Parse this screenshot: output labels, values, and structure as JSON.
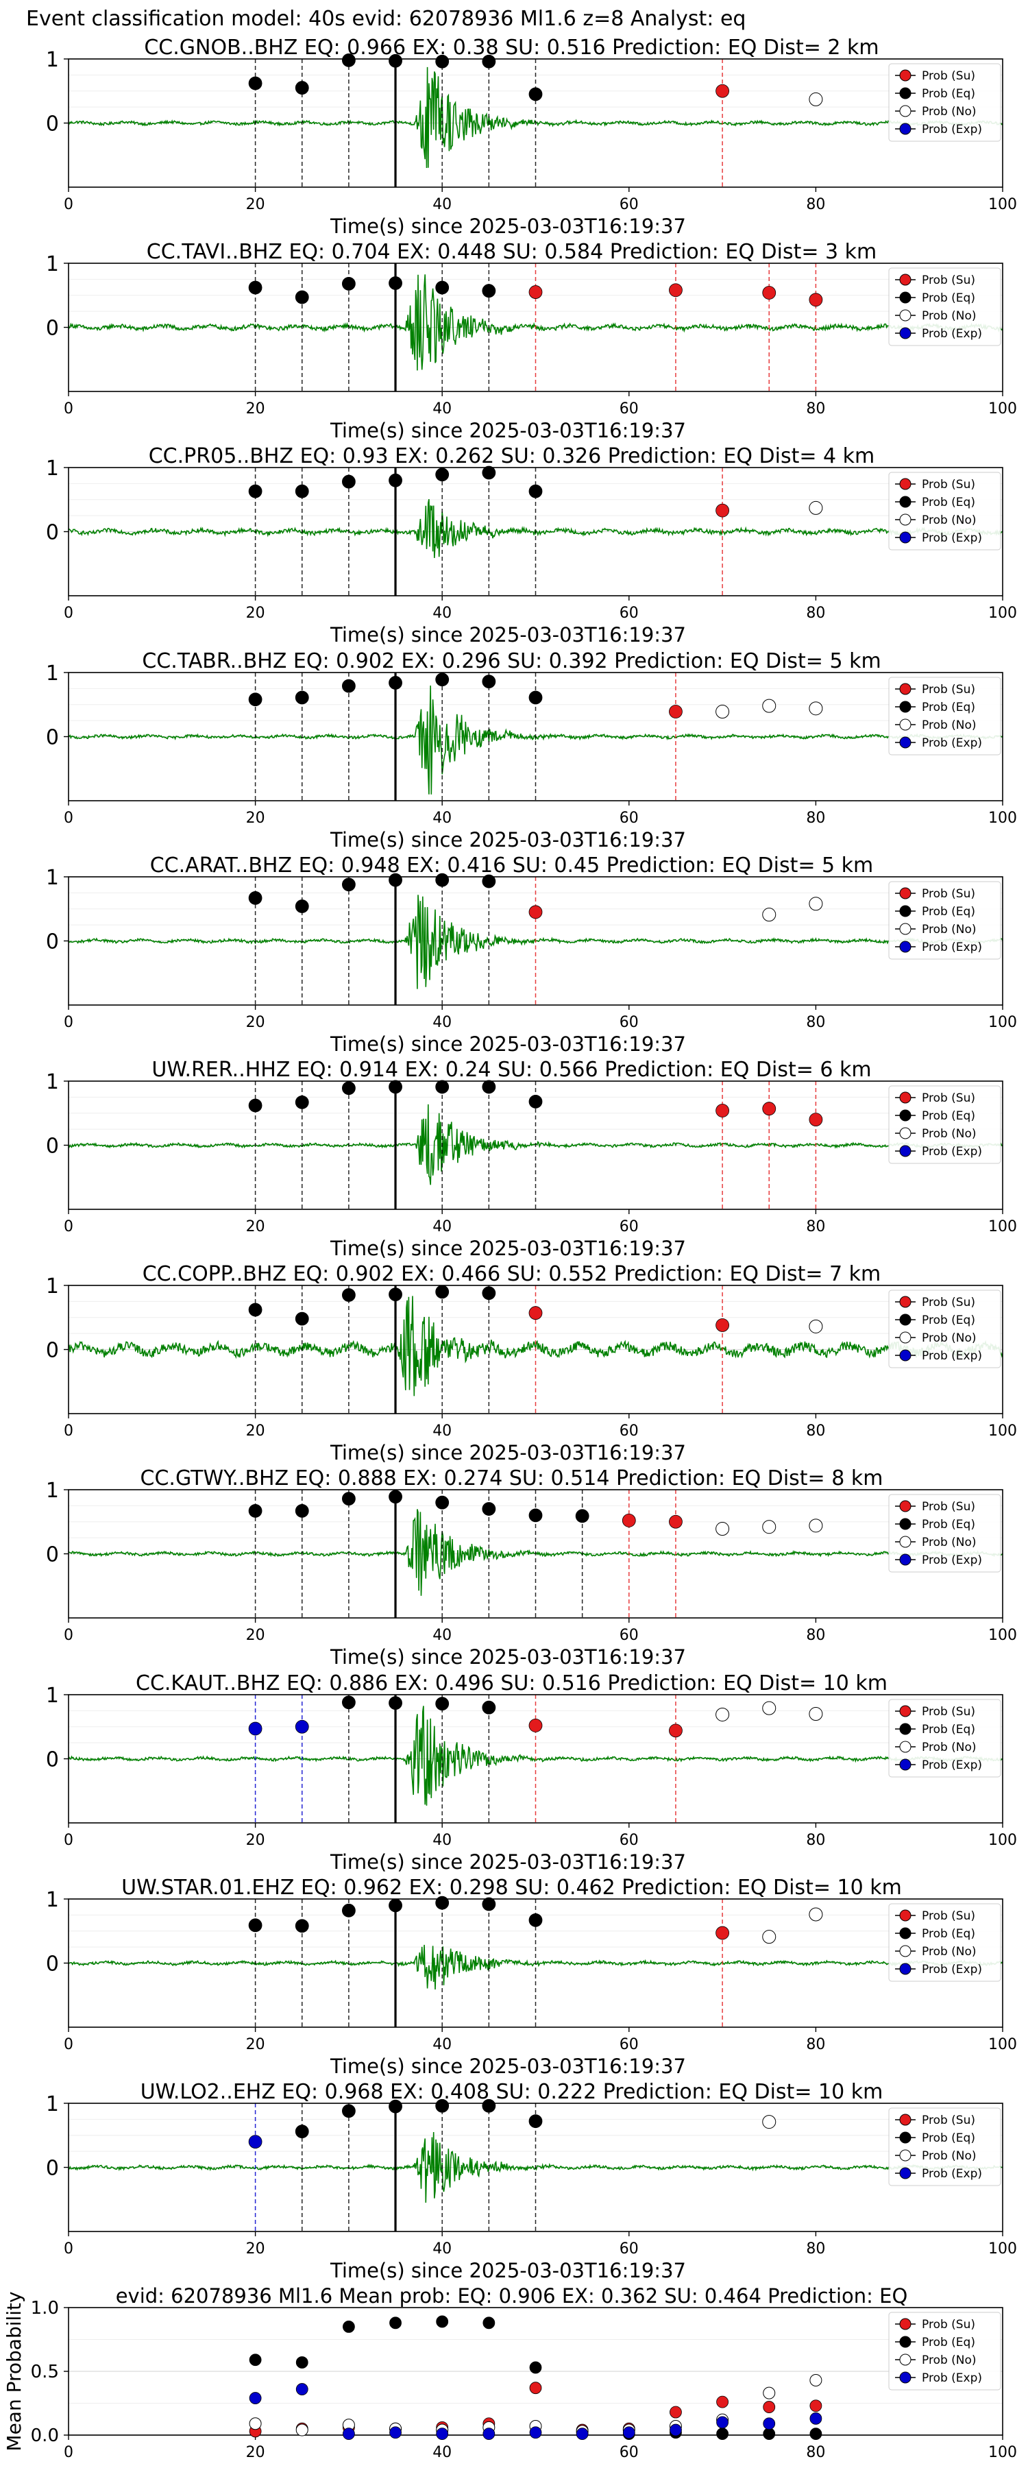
{
  "suptitle": "Event classification model: 40s evid: 62078936 Ml1.6 z=8 Analyst: eq",
  "legend_labels": [
    "Prob (Su)",
    "Prob (Eq)",
    "Prob (No)",
    "Prob (Exp)"
  ],
  "colors": {
    "su": "#e31a1c",
    "eq": "#000000",
    "no": "#ffffff",
    "exp": "#0000cc",
    "waveform": "#008000",
    "grid": "#d9d9d9",
    "pick_line": "#000000"
  },
  "chart_data": [
    {
      "type": "scatter",
      "title": "CC.GNOB..BHZ   EQ: 0.966  EX: 0.38  SU: 0.516   Prediction: EQ    Dist= 2 km",
      "xlabel": "Time(s) since 2025-03-03T16:19:37",
      "ylabel": "",
      "xlim": [
        0,
        100
      ],
      "ylim": [
        -1,
        1
      ],
      "xticks": [
        0,
        20,
        40,
        60,
        80,
        100
      ],
      "yticks": [
        0,
        1
      ],
      "grid": "y-only",
      "legend_position": "right",
      "waveform": {
        "onset": 37,
        "amplitude": 1.0,
        "noise": 0.02
      },
      "p_pick": 35,
      "series": [
        {
          "name": "Prob (Eq)",
          "x": [
            20,
            25,
            30,
            35,
            40,
            45,
            50
          ],
          "y": [
            0.62,
            0.55,
            0.98,
            0.97,
            0.96,
            0.96,
            0.45
          ]
        },
        {
          "name": "Prob (Su)",
          "x": [
            70
          ],
          "y": [
            0.5
          ]
        },
        {
          "name": "Prob (No)",
          "x": [
            80
          ],
          "y": [
            0.37
          ]
        },
        {
          "name": "Prob (Exp)",
          "x": [],
          "y": []
        }
      ]
    },
    {
      "type": "scatter",
      "title": "CC.TAVI..BHZ   EQ: 0.704  EX: 0.448  SU: 0.584   Prediction: EQ    Dist= 3 km",
      "xlabel": "Time(s) since 2025-03-03T16:19:37",
      "ylabel": "",
      "xlim": [
        0,
        100
      ],
      "ylim": [
        -1,
        1
      ],
      "xticks": [
        0,
        20,
        40,
        60,
        80,
        100
      ],
      "yticks": [
        0,
        1
      ],
      "grid": "y-only",
      "legend_position": "right",
      "waveform": {
        "onset": 36,
        "amplitude": 1.0,
        "noise": 0.03
      },
      "p_pick": 35,
      "series": [
        {
          "name": "Prob (Eq)",
          "x": [
            20,
            25,
            30,
            35,
            40,
            45
          ],
          "y": [
            0.62,
            0.47,
            0.68,
            0.69,
            0.62,
            0.57
          ]
        },
        {
          "name": "Prob (Su)",
          "x": [
            50,
            65,
            75,
            80
          ],
          "y": [
            0.55,
            0.58,
            0.54,
            0.43
          ]
        },
        {
          "name": "Prob (No)",
          "x": [],
          "y": []
        },
        {
          "name": "Prob (Exp)",
          "x": [],
          "y": []
        }
      ]
    },
    {
      "type": "scatter",
      "title": "CC.PR05..BHZ   EQ: 0.93  EX: 0.262  SU: 0.326   Prediction: EQ    Dist= 4 km",
      "xlabel": "Time(s) since 2025-03-03T16:19:37",
      "ylabel": "",
      "xlim": [
        0,
        100
      ],
      "ylim": [
        -1,
        1
      ],
      "xticks": [
        0,
        20,
        40,
        60,
        80,
        100
      ],
      "yticks": [
        0,
        1
      ],
      "grid": "y-only",
      "legend_position": "right",
      "waveform": {
        "onset": 37,
        "amplitude": 0.55,
        "noise": 0.03
      },
      "p_pick": 35,
      "series": [
        {
          "name": "Prob (Eq)",
          "x": [
            20,
            25,
            30,
            35,
            40,
            45,
            50
          ],
          "y": [
            0.63,
            0.63,
            0.78,
            0.8,
            0.89,
            0.92,
            0.63
          ]
        },
        {
          "name": "Prob (Su)",
          "x": [
            70
          ],
          "y": [
            0.33
          ]
        },
        {
          "name": "Prob (No)",
          "x": [
            80
          ],
          "y": [
            0.37
          ]
        },
        {
          "name": "Prob (Exp)",
          "x": [],
          "y": []
        }
      ]
    },
    {
      "type": "scatter",
      "title": "CC.TABR..BHZ   EQ: 0.902  EX: 0.296  SU: 0.392   Prediction: EQ    Dist= 5 km",
      "xlabel": "Time(s) since 2025-03-03T16:19:37",
      "ylabel": "",
      "xlim": [
        0,
        100
      ],
      "ylim": [
        -1,
        1
      ],
      "xticks": [
        0,
        20,
        40,
        60,
        80,
        100
      ],
      "yticks": [
        0,
        1
      ],
      "grid": "y-only",
      "legend_position": "right",
      "waveform": {
        "onset": 37,
        "amplitude": 1.0,
        "noise": 0.02
      },
      "p_pick": 35,
      "series": [
        {
          "name": "Prob (Eq)",
          "x": [
            20,
            25,
            30,
            35,
            40,
            45,
            50
          ],
          "y": [
            0.58,
            0.61,
            0.79,
            0.84,
            0.89,
            0.86,
            0.61
          ]
        },
        {
          "name": "Prob (Su)",
          "x": [
            65
          ],
          "y": [
            0.39
          ]
        },
        {
          "name": "Prob (No)",
          "x": [
            70,
            75,
            80
          ],
          "y": [
            0.39,
            0.48,
            0.44
          ]
        },
        {
          "name": "Prob (Exp)",
          "x": [],
          "y": []
        }
      ]
    },
    {
      "type": "scatter",
      "title": "CC.ARAT..BHZ   EQ: 0.948  EX: 0.416  SU: 0.45   Prediction: EQ    Dist= 5 km",
      "xlabel": "Time(s) since 2025-03-03T16:19:37",
      "ylabel": "",
      "xlim": [
        0,
        100
      ],
      "ylim": [
        -1,
        1
      ],
      "xticks": [
        0,
        20,
        40,
        60,
        80,
        100
      ],
      "yticks": [
        0,
        1
      ],
      "grid": "y-only",
      "legend_position": "right",
      "waveform": {
        "onset": 36,
        "amplitude": 0.9,
        "noise": 0.02
      },
      "p_pick": 35,
      "series": [
        {
          "name": "Prob (Eq)",
          "x": [
            20,
            25,
            30,
            35,
            40,
            45
          ],
          "y": [
            0.67,
            0.54,
            0.88,
            0.95,
            0.95,
            0.93
          ]
        },
        {
          "name": "Prob (Su)",
          "x": [
            50
          ],
          "y": [
            0.45
          ]
        },
        {
          "name": "Prob (No)",
          "x": [
            75,
            80
          ],
          "y": [
            0.41,
            0.58
          ]
        },
        {
          "name": "Prob (Exp)",
          "x": [],
          "y": []
        }
      ]
    },
    {
      "type": "scatter",
      "title": "UW.RER..HHZ   EQ: 0.914  EX: 0.24  SU: 0.566   Prediction: EQ    Dist= 6 km",
      "xlabel": "Time(s) since 2025-03-03T16:19:37",
      "ylabel": "",
      "xlim": [
        0,
        100
      ],
      "ylim": [
        -1,
        1
      ],
      "xticks": [
        0,
        20,
        40,
        60,
        80,
        100
      ],
      "yticks": [
        0,
        1
      ],
      "grid": "y-only",
      "legend_position": "right",
      "waveform": {
        "onset": 37,
        "amplitude": 0.75,
        "noise": 0.02
      },
      "p_pick": 35,
      "series": [
        {
          "name": "Prob (Eq)",
          "x": [
            20,
            25,
            30,
            35,
            40,
            45,
            50
          ],
          "y": [
            0.62,
            0.67,
            0.89,
            0.91,
            0.91,
            0.91,
            0.68
          ]
        },
        {
          "name": "Prob (Su)",
          "x": [
            70,
            75,
            80
          ],
          "y": [
            0.54,
            0.57,
            0.4
          ]
        },
        {
          "name": "Prob (No)",
          "x": [],
          "y": []
        },
        {
          "name": "Prob (Exp)",
          "x": [],
          "y": []
        }
      ]
    },
    {
      "type": "scatter",
      "title": "CC.COPP..BHZ   EQ: 0.902  EX: 0.466  SU: 0.552   Prediction: EQ    Dist= 7 km",
      "xlabel": "Time(s) since 2025-03-03T16:19:37",
      "ylabel": "",
      "xlim": [
        0,
        100
      ],
      "ylim": [
        -1,
        1
      ],
      "xticks": [
        0,
        20,
        40,
        60,
        80,
        100
      ],
      "yticks": [
        0,
        1
      ],
      "grid": "y-only",
      "legend_position": "right",
      "waveform": {
        "onset": 35,
        "amplitude": 1.0,
        "noise": 0.07
      },
      "p_pick": 35,
      "series": [
        {
          "name": "Prob (Eq)",
          "x": [
            20,
            25,
            30,
            35,
            40,
            45
          ],
          "y": [
            0.62,
            0.48,
            0.85,
            0.86,
            0.9,
            0.88
          ]
        },
        {
          "name": "Prob (Su)",
          "x": [
            50,
            70
          ],
          "y": [
            0.57,
            0.38
          ]
        },
        {
          "name": "Prob (No)",
          "x": [
            80
          ],
          "y": [
            0.36
          ]
        },
        {
          "name": "Prob (Exp)",
          "x": [],
          "y": []
        }
      ]
    },
    {
      "type": "scatter",
      "title": "CC.GTWY..BHZ   EQ: 0.888  EX: 0.274  SU: 0.514   Prediction: EQ    Dist= 8 km",
      "xlabel": "Time(s) since 2025-03-03T16:19:37",
      "ylabel": "",
      "xlim": [
        0,
        100
      ],
      "ylim": [
        -1,
        1
      ],
      "xticks": [
        0,
        20,
        40,
        60,
        80,
        100
      ],
      "yticks": [
        0,
        1
      ],
      "grid": "y-only",
      "legend_position": "right",
      "waveform": {
        "onset": 36,
        "amplitude": 0.9,
        "noise": 0.02
      },
      "p_pick": 35,
      "series": [
        {
          "name": "Prob (Eq)",
          "x": [
            20,
            25,
            30,
            35,
            40,
            45,
            50,
            55
          ],
          "y": [
            0.67,
            0.67,
            0.86,
            0.89,
            0.8,
            0.7,
            0.6,
            0.59
          ]
        },
        {
          "name": "Prob (Su)",
          "x": [
            60,
            65
          ],
          "y": [
            0.52,
            0.5
          ]
        },
        {
          "name": "Prob (No)",
          "x": [
            70,
            75,
            80
          ],
          "y": [
            0.39,
            0.42,
            0.44
          ]
        },
        {
          "name": "Prob (Exp)",
          "x": [],
          "y": []
        }
      ]
    },
    {
      "type": "scatter",
      "title": "CC.KAUT..BHZ   EQ: 0.886  EX: 0.496  SU: 0.516   Prediction: EQ    Dist= 10 km",
      "xlabel": "Time(s) since 2025-03-03T16:19:37",
      "ylabel": "",
      "xlim": [
        0,
        100
      ],
      "ylim": [
        -1,
        1
      ],
      "xticks": [
        0,
        20,
        40,
        60,
        80,
        100
      ],
      "yticks": [
        0,
        1
      ],
      "grid": "y-only",
      "legend_position": "right",
      "waveform": {
        "onset": 36,
        "amplitude": 1.0,
        "noise": 0.02
      },
      "p_pick": 35,
      "series": [
        {
          "name": "Prob (Eq)",
          "x": [
            30,
            35,
            40,
            45
          ],
          "y": [
            0.88,
            0.87,
            0.86,
            0.8
          ]
        },
        {
          "name": "Prob (Su)",
          "x": [
            50,
            65
          ],
          "y": [
            0.52,
            0.44
          ]
        },
        {
          "name": "Prob (No)",
          "x": [
            70,
            75,
            80
          ],
          "y": [
            0.69,
            0.79,
            0.7
          ]
        },
        {
          "name": "Prob (Exp)",
          "x": [
            20,
            25
          ],
          "y": [
            0.47,
            0.5
          ]
        }
      ]
    },
    {
      "type": "scatter",
      "title": "UW.STAR.01.EHZ   EQ: 0.962  EX: 0.298  SU: 0.462   Prediction: EQ    Dist= 10 km",
      "xlabel": "Time(s) since 2025-03-03T16:19:37",
      "ylabel": "",
      "xlim": [
        0,
        100
      ],
      "ylim": [
        -1,
        1
      ],
      "xticks": [
        0,
        20,
        40,
        60,
        80,
        100
      ],
      "yticks": [
        0,
        1
      ],
      "grid": "y-only",
      "legend_position": "right",
      "waveform": {
        "onset": 37,
        "amplitude": 0.6,
        "noise": 0.02
      },
      "p_pick": 35,
      "series": [
        {
          "name": "Prob (Eq)",
          "x": [
            20,
            25,
            30,
            35,
            40,
            45,
            50
          ],
          "y": [
            0.59,
            0.58,
            0.82,
            0.9,
            0.94,
            0.92,
            0.67
          ]
        },
        {
          "name": "Prob (Su)",
          "x": [
            70
          ],
          "y": [
            0.47
          ]
        },
        {
          "name": "Prob (No)",
          "x": [
            75,
            80
          ],
          "y": [
            0.41,
            0.76
          ]
        },
        {
          "name": "Prob (Exp)",
          "x": [],
          "y": []
        }
      ]
    },
    {
      "type": "scatter",
      "title": "UW.LO2..EHZ   EQ: 0.968  EX: 0.408  SU: 0.222   Prediction: EQ    Dist= 10 km",
      "xlabel": "Time(s) since 2025-03-03T16:19:37",
      "ylabel": "",
      "xlim": [
        0,
        100
      ],
      "ylim": [
        -1,
        1
      ],
      "xticks": [
        0,
        20,
        40,
        60,
        80,
        100
      ],
      "yticks": [
        0,
        1
      ],
      "grid": "y-only",
      "legend_position": "right",
      "waveform": {
        "onset": 37,
        "amplitude": 0.7,
        "noise": 0.02
      },
      "p_pick": 35,
      "series": [
        {
          "name": "Prob (Eq)",
          "x": [
            25,
            30,
            35,
            40,
            45,
            50
          ],
          "y": [
            0.56,
            0.88,
            0.95,
            0.96,
            0.96,
            0.72
          ]
        },
        {
          "name": "Prob (Su)",
          "x": [],
          "y": []
        },
        {
          "name": "Prob (No)",
          "x": [
            75
          ],
          "y": [
            0.71
          ]
        },
        {
          "name": "Prob (Exp)",
          "x": [
            20
          ],
          "y": [
            0.4
          ]
        }
      ]
    },
    {
      "type": "scatter",
      "title": "evid: 62078936  Ml1.6   Mean prob:  EQ: 0.906  EX: 0.362  SU: 0.464   Prediction: EQ",
      "xlabel": "",
      "ylabel": "Mean Probability",
      "xlim": [
        0,
        100
      ],
      "ylim": [
        0,
        1
      ],
      "xticks": [
        0,
        20,
        40,
        60,
        80,
        100
      ],
      "yticks": [
        0.0,
        0.5,
        1.0
      ],
      "grid": "y-only",
      "legend_position": "right",
      "series": [
        {
          "name": "Prob (Su)",
          "x": [
            20,
            25,
            30,
            35,
            40,
            45,
            50,
            55,
            60,
            65,
            70,
            75,
            80
          ],
          "y": [
            0.03,
            0.05,
            0.06,
            0.05,
            0.06,
            0.09,
            0.37,
            0.04,
            0.05,
            0.18,
            0.26,
            0.22,
            0.23
          ]
        },
        {
          "name": "Prob (Eq)",
          "x": [
            20,
            25,
            30,
            35,
            40,
            45,
            50,
            55,
            60,
            65,
            70,
            75,
            80
          ],
          "y": [
            0.59,
            0.57,
            0.85,
            0.88,
            0.89,
            0.88,
            0.53,
            0.02,
            0.01,
            0.02,
            0.01,
            0.01,
            0.01
          ]
        },
        {
          "name": "Prob (No)",
          "x": [
            20,
            25,
            30,
            35,
            40,
            45,
            50,
            55,
            60,
            65,
            70,
            75,
            80
          ],
          "y": [
            0.09,
            0.04,
            0.08,
            0.05,
            0.04,
            0.06,
            0.07,
            0.03,
            0.04,
            0.07,
            0.12,
            0.33,
            0.43
          ]
        },
        {
          "name": "Prob (Exp)",
          "x": [
            20,
            25,
            30,
            35,
            40,
            45,
            50,
            55,
            60,
            65,
            70,
            75,
            80
          ],
          "y": [
            0.29,
            0.36,
            0.01,
            0.02,
            0.01,
            0.01,
            0.02,
            0.01,
            0.02,
            0.04,
            0.1,
            0.09,
            0.13
          ]
        }
      ]
    }
  ]
}
